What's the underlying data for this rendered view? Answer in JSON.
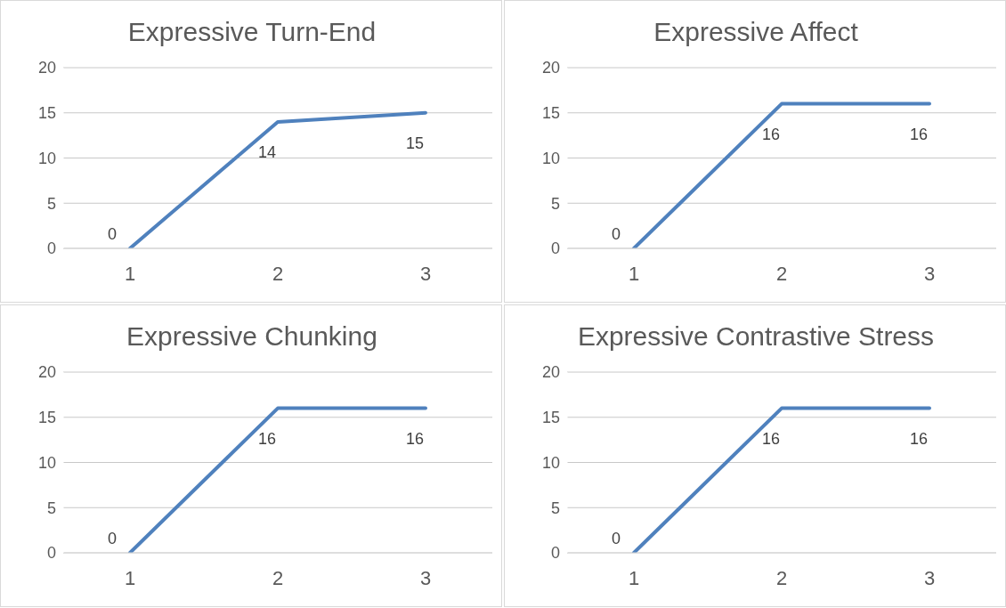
{
  "chart_data": [
    {
      "type": "line",
      "title": "Expressive Turn-End",
      "categories": [
        "1",
        "2",
        "3"
      ],
      "series": [
        {
          "color": "#4f81bd",
          "values": [
            0,
            14,
            15
          ]
        }
      ],
      "ylim": [
        0,
        20
      ],
      "yticks": [
        0,
        5,
        10,
        15,
        20
      ],
      "grid": "y",
      "data_labels": true,
      "legend": false,
      "marker": "none"
    },
    {
      "type": "line",
      "title": "Expressive Affect",
      "categories": [
        "1",
        "2",
        "3"
      ],
      "series": [
        {
          "color": "#4f81bd",
          "values": [
            0,
            16,
            16
          ]
        }
      ],
      "ylim": [
        0,
        20
      ],
      "yticks": [
        0,
        5,
        10,
        15,
        20
      ],
      "grid": "y",
      "data_labels": true,
      "legend": false,
      "marker": "none"
    },
    {
      "type": "line",
      "title": "Expressive Chunking",
      "categories": [
        "1",
        "2",
        "3"
      ],
      "series": [
        {
          "color": "#4f81bd",
          "values": [
            0,
            16,
            16
          ]
        }
      ],
      "ylim": [
        0,
        20
      ],
      "yticks": [
        0,
        5,
        10,
        15,
        20
      ],
      "grid": "y",
      "data_labels": true,
      "legend": false,
      "marker": "none"
    },
    {
      "type": "line",
      "title": "Expressive Contrastive Stress",
      "categories": [
        "1",
        "2",
        "3"
      ],
      "series": [
        {
          "color": "#4f81bd",
          "values": [
            0,
            16,
            16
          ]
        }
      ],
      "ylim": [
        0,
        20
      ],
      "yticks": [
        0,
        5,
        10,
        15,
        20
      ],
      "grid": "y",
      "data_labels": true,
      "legend": false,
      "marker": "none"
    }
  ]
}
